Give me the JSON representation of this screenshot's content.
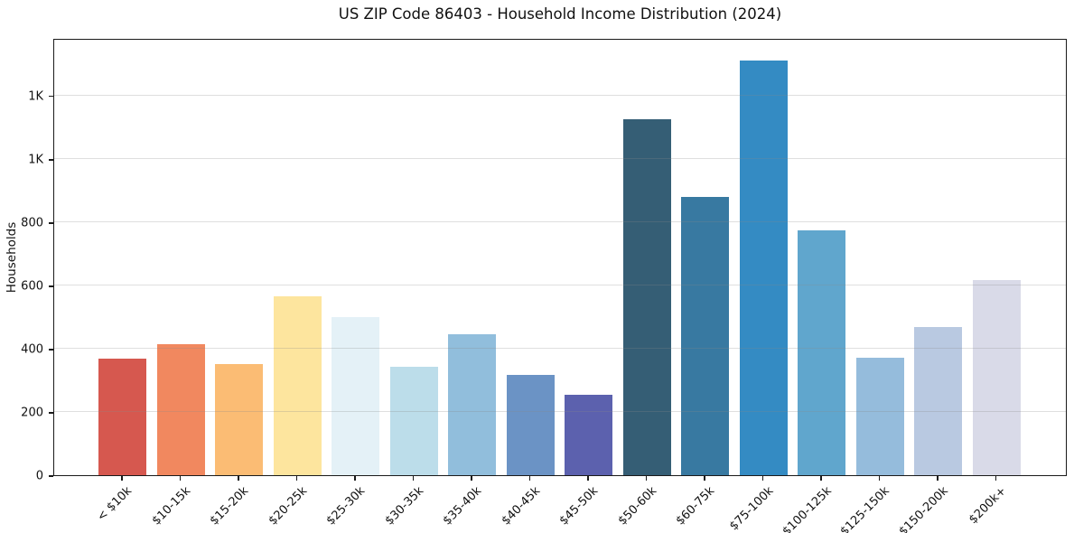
{
  "figure": {
    "title": "US ZIP Code 86403 - Household Income Distribution (2024)",
    "y_axis_label": "Households"
  },
  "chart_data": {
    "type": "bar",
    "title": "US ZIP Code 86403 - Household Income Distribution (2024)",
    "xlabel": "",
    "ylabel": "Households",
    "categories": [
      "< $10k",
      "$10-15k",
      "$15-20k",
      "$20-25k",
      "$25-30k",
      "$30-35k",
      "$35-40k",
      "$40-45k",
      "$45-50k",
      "$50-60k",
      "$60-75k",
      "$75-100k",
      "$100-125k",
      "$125-150k",
      "$150-200k",
      "$200k+"
    ],
    "values": [
      369,
      415,
      352,
      565,
      500,
      343,
      446,
      318,
      255,
      1126,
      881,
      1311,
      773,
      371,
      468,
      616
    ],
    "bar_colors": [
      "#D6584F",
      "#F1885F",
      "#FBBC74",
      "#FDE59E",
      "#E4F1F7",
      "#BCDDEA",
      "#91BEDC",
      "#6B93C5",
      "#5C61AE",
      "#355E75",
      "#3879A1",
      "#348BC3",
      "#60A6CD",
      "#95BCDC",
      "#B9C9E1",
      "#D9DAE8"
    ],
    "ylim": [
      0,
      1382
    ],
    "yticks": [
      0,
      200,
      400,
      600,
      800,
      1000,
      1200
    ],
    "ytick_labels": [
      "0",
      "200",
      "400",
      "600",
      "800",
      "1K",
      "1K"
    ],
    "grid": "horizontal-only",
    "gridline_color": "#E7E7E7",
    "legend": "none"
  }
}
